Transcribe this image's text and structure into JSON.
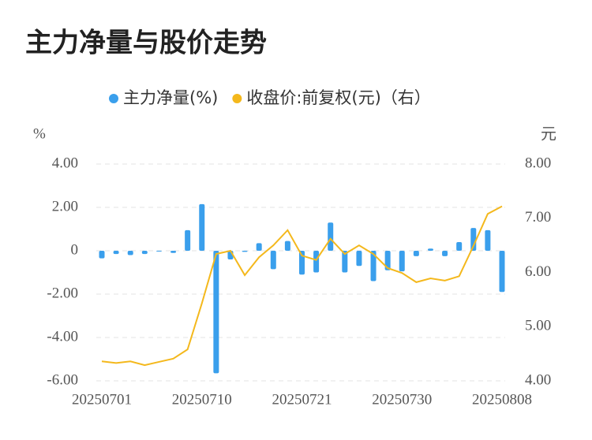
{
  "chart_data": {
    "type": "bar_line",
    "title": "主力净量与股价走势",
    "y_label": "%",
    "y2_label": "元",
    "categories": [
      "20250701",
      "20250702",
      "20250703",
      "20250704",
      "20250707",
      "20250708",
      "20250709",
      "20250710",
      "20250711",
      "20250714",
      "20250715",
      "20250716",
      "20250717",
      "20250718",
      "20250721",
      "20250722",
      "20250723",
      "20250724",
      "20250725",
      "20250728",
      "20250729",
      "20250730",
      "20250731",
      "20250801",
      "20250804",
      "20250805",
      "20250806",
      "20250807",
      "20250808"
    ],
    "xtick_indices": [
      0,
      7,
      14,
      21,
      28
    ],
    "series": [
      {
        "name": "主力净量(%)",
        "color": "#3a9fec",
        "type": "bar",
        "values": [
          -0.35,
          -0.15,
          -0.2,
          -0.15,
          -0.03,
          -0.1,
          0.95,
          2.15,
          -5.65,
          -0.4,
          -0.05,
          0.35,
          -0.85,
          0.45,
          -1.1,
          -1.0,
          1.3,
          -1.0,
          -0.7,
          -1.4,
          -0.9,
          -0.95,
          -0.25,
          0.1,
          -0.25,
          0.4,
          1.05,
          0.95,
          -1.9
        ]
      },
      {
        "name": "收盘价:前复权(元)（右）",
        "color": "#f4b81c",
        "type": "line",
        "axis": "y2",
        "values": [
          4.36,
          4.33,
          4.36,
          4.29,
          4.35,
          4.41,
          4.58,
          5.43,
          6.34,
          6.4,
          5.95,
          6.28,
          6.5,
          6.78,
          6.31,
          6.23,
          6.62,
          6.34,
          6.5,
          6.34,
          6.08,
          5.99,
          5.82,
          5.89,
          5.85,
          5.93,
          6.49,
          7.08,
          7.22
        ]
      }
    ],
    "ylim": [
      -6,
      4
    ],
    "yticks": [
      {
        "value": 4,
        "label": "4.00"
      },
      {
        "value": 2,
        "label": "2.00"
      },
      0,
      {
        "value": -2,
        "label": "-2.00"
      },
      {
        "value": -4,
        "label": "-4.00"
      },
      {
        "value": -6,
        "label": "-6.00"
      }
    ],
    "y2lim": [
      4,
      8
    ],
    "y2ticks": [
      {
        "value": 8,
        "label": "8.00"
      },
      {
        "value": 7,
        "label": "7.00"
      },
      {
        "value": 6,
        "label": "6.00"
      },
      {
        "value": 5,
        "label": "5.00"
      },
      {
        "value": 4,
        "label": "4.00"
      }
    ],
    "grid": true
  }
}
